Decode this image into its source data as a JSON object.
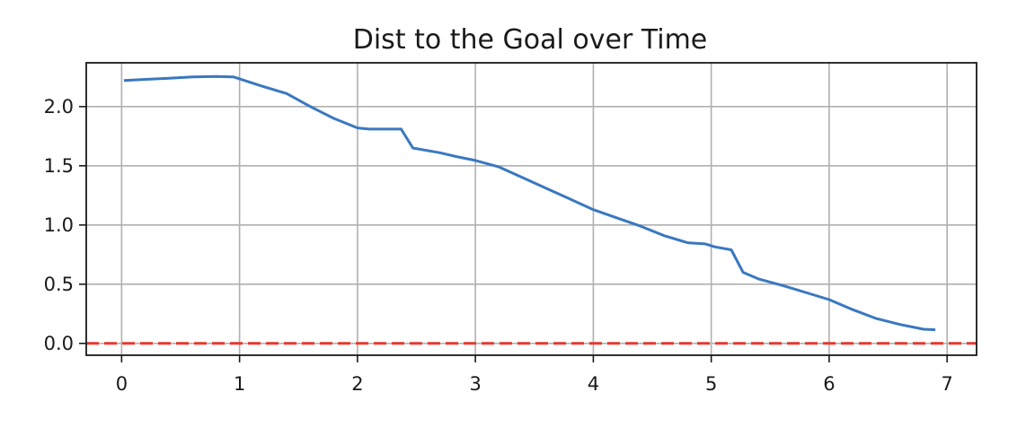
{
  "chart_data": {
    "type": "line",
    "title": "Dist to the Goal over Time",
    "xlabel": "",
    "ylabel": "",
    "xlim": [
      -0.3,
      7.25
    ],
    "ylim": [
      -0.1,
      2.37
    ],
    "x_ticks": [
      0,
      1,
      2,
      3,
      4,
      5,
      6,
      7
    ],
    "y_ticks": [
      0.0,
      0.5,
      1.0,
      1.5,
      2.0
    ],
    "x_tick_labels": [
      "0",
      "1",
      "2",
      "3",
      "4",
      "5",
      "6",
      "7"
    ],
    "y_tick_labels": [
      "0.0",
      "0.5",
      "1.0",
      "1.5",
      "2.0"
    ],
    "grid": true,
    "series": [
      {
        "color": "#3a78c0",
        "style": "solid",
        "x": [
          0.02,
          0.2,
          0.4,
          0.6,
          0.8,
          0.95,
          1.2,
          1.4,
          1.6,
          1.8,
          2.0,
          2.1,
          2.37,
          2.47,
          2.7,
          2.85,
          3.0,
          3.2,
          3.4,
          3.6,
          3.8,
          4.0,
          4.2,
          4.4,
          4.6,
          4.8,
          4.95,
          5.03,
          5.17,
          5.27,
          5.4,
          5.6,
          5.8,
          6.0,
          6.2,
          6.4,
          6.6,
          6.8,
          6.9
        ],
        "y": [
          2.22,
          2.23,
          2.24,
          2.25,
          2.255,
          2.25,
          2.17,
          2.11,
          2.0,
          1.9,
          1.82,
          1.81,
          1.81,
          1.65,
          1.61,
          1.575,
          1.545,
          1.49,
          1.4,
          1.31,
          1.22,
          1.13,
          1.06,
          0.99,
          0.91,
          0.85,
          0.84,
          0.815,
          0.79,
          0.6,
          0.545,
          0.49,
          0.43,
          0.37,
          0.285,
          0.21,
          0.16,
          0.12,
          0.115
        ]
      },
      {
        "color": "#e8382e",
        "style": "dashed",
        "x": [
          -0.3,
          7.25
        ],
        "y": [
          0.0,
          0.0
        ]
      }
    ]
  }
}
